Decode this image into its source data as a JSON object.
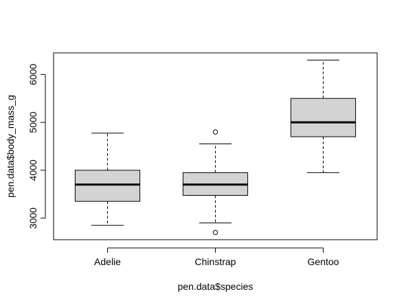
{
  "chart_data": {
    "type": "boxplot",
    "title": "",
    "xlabel": "pen.data$species",
    "ylabel": "pen.data$body_mass_g",
    "categories": [
      "Adelie",
      "Chinstrap",
      "Gentoo"
    ],
    "ylim": [
      2550,
      6450
    ],
    "yticks": [
      3000,
      4000,
      5000,
      6000
    ],
    "box_fill": "#d3d3d3",
    "boxes": [
      {
        "category": "Adelie",
        "whisker_low": 2850,
        "q1": 3350,
        "median": 3700,
        "q3": 4000,
        "whisker_high": 4775,
        "outliers": []
      },
      {
        "category": "Chinstrap",
        "whisker_low": 2900,
        "q1": 3475,
        "median": 3700,
        "q3": 3950,
        "whisker_high": 4550,
        "outliers": [
          2700,
          4800
        ]
      },
      {
        "category": "Gentoo",
        "whisker_low": 3950,
        "q1": 4700,
        "median": 5000,
        "q3": 5500,
        "whisker_high": 6300,
        "outliers": []
      }
    ]
  }
}
